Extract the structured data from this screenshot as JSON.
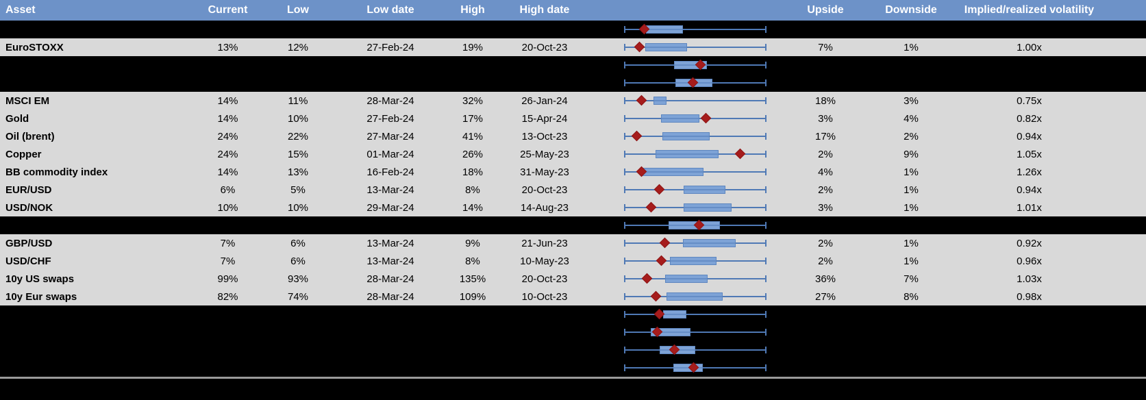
{
  "header": {
    "columns": [
      "Asset",
      "Current",
      "Low",
      "Low date",
      "High",
      "High date",
      "",
      "Upside",
      "Downside",
      "Implied/realized volatility"
    ]
  },
  "colors": {
    "header_bg": "#6d92c8",
    "data_row_bg": "#d9d9d9",
    "hidden_row_bg": "#000000",
    "whisker_blue": "#4f79b5",
    "box_fill_blue": "#7ea3d6",
    "box_border_blue": "#5d86c0",
    "marker_red": "#a61c1c",
    "separator_gray": "#9a9a9a"
  },
  "rows": [
    {
      "type": "hidden",
      "asset": "",
      "current": "",
      "low": "",
      "low_date": "",
      "high": "",
      "high_date": "",
      "upside": "",
      "downside": "",
      "impl_real": "",
      "plot": {
        "lo": 0.15,
        "hi": 0.413,
        "marker": 0.136
      }
    },
    {
      "type": "data",
      "asset": "EuroSTOXX",
      "current": "13%",
      "low": "12%",
      "low_date": "27-Feb-24",
      "high": "19%",
      "high_date": "20-Oct-23",
      "upside": "7%",
      "downside": "1%",
      "impl_real": "1.00x",
      "plot": {
        "lo": 0.146,
        "hi": 0.442,
        "marker": 0.102
      }
    },
    {
      "type": "hidden",
      "asset": "",
      "current": "",
      "low": "",
      "low_date": "",
      "high": "",
      "high_date": "",
      "upside": "",
      "downside": "",
      "impl_real": "",
      "plot": {
        "lo": 0.35,
        "hi": 0.583,
        "marker": 0.534
      }
    },
    {
      "type": "hidden",
      "asset": "",
      "current": "",
      "low": "",
      "low_date": "",
      "high": "",
      "high_date": "",
      "upside": "",
      "downside": "",
      "impl_real": "",
      "plot": {
        "lo": 0.359,
        "hi": 0.621,
        "marker": 0.485
      }
    },
    {
      "type": "data",
      "asset": "MSCI EM",
      "current": "14%",
      "low": "11%",
      "low_date": "28-Mar-24",
      "high": "32%",
      "high_date": "26-Jan-24",
      "upside": "18%",
      "downside": "3%",
      "impl_real": "0.75x",
      "plot": {
        "lo": 0.204,
        "hi": 0.296,
        "marker": 0.121
      }
    },
    {
      "type": "data",
      "asset": "Gold",
      "current": "14%",
      "low": "10%",
      "low_date": "27-Feb-24",
      "high": "17%",
      "high_date": "15-Apr-24",
      "upside": "3%",
      "downside": "4%",
      "impl_real": "0.82x",
      "plot": {
        "lo": 0.257,
        "hi": 0.529,
        "marker": 0.573
      }
    },
    {
      "type": "data",
      "asset": "Oil (brent)",
      "current": "24%",
      "low": "22%",
      "low_date": "27-Mar-24",
      "high": "41%",
      "high_date": "13-Oct-23",
      "upside": "17%",
      "downside": "2%",
      "impl_real": "0.94x",
      "plot": {
        "lo": 0.267,
        "hi": 0.602,
        "marker": 0.083
      }
    },
    {
      "type": "data",
      "asset": "Copper",
      "current": "24%",
      "low": "15%",
      "low_date": "01-Mar-24",
      "high": "26%",
      "high_date": "25-May-23",
      "upside": "2%",
      "downside": "9%",
      "impl_real": "1.05x",
      "plot": {
        "lo": 0.218,
        "hi": 0.665,
        "marker": 0.82
      }
    },
    {
      "type": "data",
      "asset": "BB commodity index",
      "current": "14%",
      "low": "13%",
      "low_date": "16-Feb-24",
      "high": "18%",
      "high_date": "31-May-23",
      "upside": "4%",
      "downside": "1%",
      "impl_real": "1.26x",
      "plot": {
        "lo": 0.126,
        "hi": 0.558,
        "marker": 0.117
      }
    },
    {
      "type": "data",
      "asset": "EUR/USD",
      "current": "6%",
      "low": "5%",
      "low_date": "13-Mar-24",
      "high": "8%",
      "high_date": "20-Oct-23",
      "upside": "2%",
      "downside": "1%",
      "impl_real": "0.94x",
      "plot": {
        "lo": 0.417,
        "hi": 0.714,
        "marker": 0.243
      }
    },
    {
      "type": "data",
      "asset": "USD/NOK",
      "current": "10%",
      "low": "10%",
      "low_date": "29-Mar-24",
      "high": "14%",
      "high_date": "14-Aug-23",
      "upside": "3%",
      "downside": "1%",
      "impl_real": "1.01x",
      "plot": {
        "lo": 0.417,
        "hi": 0.757,
        "marker": 0.189
      }
    },
    {
      "type": "hidden",
      "asset": "",
      "current": "",
      "low": "",
      "low_date": "",
      "high": "",
      "high_date": "",
      "upside": "",
      "downside": "",
      "impl_real": "",
      "plot": {
        "lo": 0.311,
        "hi": 0.675,
        "marker": 0.529
      }
    },
    {
      "type": "data",
      "asset": "GBP/USD",
      "current": "7%",
      "low": "6%",
      "low_date": "13-Mar-24",
      "high": "9%",
      "high_date": "21-Jun-23",
      "upside": "2%",
      "downside": "1%",
      "impl_real": "0.92x",
      "plot": {
        "lo": 0.413,
        "hi": 0.786,
        "marker": 0.282
      }
    },
    {
      "type": "data",
      "asset": "USD/CHF",
      "current": "7%",
      "low": "6%",
      "low_date": "13-Mar-24",
      "high": "8%",
      "high_date": "10-May-23",
      "upside": "2%",
      "downside": "1%",
      "impl_real": "0.96x",
      "plot": {
        "lo": 0.32,
        "hi": 0.65,
        "marker": 0.262
      }
    },
    {
      "type": "data",
      "asset": "10y US swaps",
      "current": "99%",
      "low": "93%",
      "low_date": "28-Mar-24",
      "high": "135%",
      "high_date": "20-Oct-23",
      "upside": "36%",
      "downside": "7%",
      "impl_real": "1.03x",
      "plot": {
        "lo": 0.286,
        "hi": 0.587,
        "marker": 0.16
      }
    },
    {
      "type": "data",
      "asset": "10y Eur swaps",
      "current": "82%",
      "low": "74%",
      "low_date": "28-Mar-24",
      "high": "109%",
      "high_date": "10-Oct-23",
      "upside": "27%",
      "downside": "8%",
      "impl_real": "0.98x",
      "plot": {
        "lo": 0.296,
        "hi": 0.694,
        "marker": 0.223
      }
    },
    {
      "type": "hidden",
      "asset": "",
      "current": "",
      "low": "",
      "low_date": "",
      "high": "",
      "high_date": "",
      "upside": "",
      "downside": "",
      "impl_real": "",
      "plot": {
        "lo": 0.272,
        "hi": 0.437,
        "marker": 0.243
      }
    },
    {
      "type": "hidden",
      "asset": "",
      "current": "",
      "low": "",
      "low_date": "",
      "high": "",
      "high_date": "",
      "upside": "",
      "downside": "",
      "impl_real": "",
      "plot": {
        "lo": 0.184,
        "hi": 0.466,
        "marker": 0.233
      }
    },
    {
      "type": "hidden",
      "asset": "",
      "current": "",
      "low": "",
      "low_date": "",
      "high": "",
      "high_date": "",
      "upside": "",
      "downside": "",
      "impl_real": "",
      "plot": {
        "lo": 0.248,
        "hi": 0.5,
        "marker": 0.35
      }
    },
    {
      "type": "hidden",
      "asset": "",
      "current": "",
      "low": "",
      "low_date": "",
      "high": "",
      "high_date": "",
      "upside": "",
      "downside": "",
      "impl_real": "",
      "plot": {
        "lo": 0.345,
        "hi": 0.553,
        "marker": 0.49
      }
    }
  ]
}
